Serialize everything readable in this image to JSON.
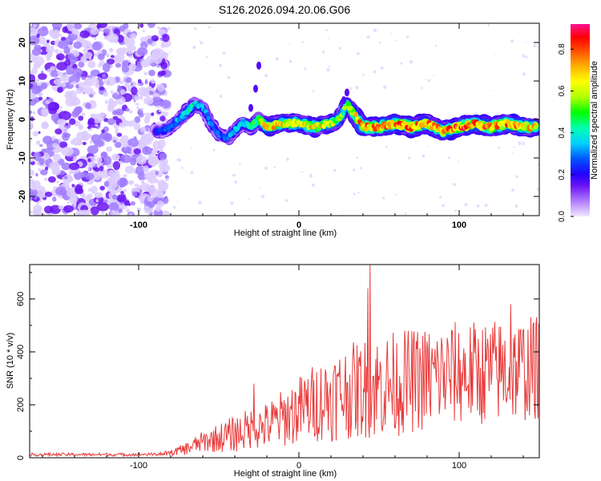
{
  "title": "S126.2026.094.20.06.G06",
  "chart_data": [
    {
      "type": "heatmap",
      "name": "spectrogram",
      "xlabel": "Height of straight line (km)",
      "ylabel": "Frequency (Hz)",
      "xlim": [
        -168,
        150
      ],
      "ylim": [
        -25,
        25
      ],
      "xticks": [
        -100,
        0,
        100
      ],
      "yticks": [
        -20,
        -10,
        0,
        10,
        20
      ],
      "noise_region_x": [
        -168,
        -82
      ],
      "signal_track": {
        "x": [
          -90,
          -85,
          -80,
          -75,
          -70,
          -65,
          -60,
          -55,
          -50,
          -45,
          -40,
          -35,
          -30,
          -25,
          -20,
          -10,
          0,
          10,
          20,
          25,
          30,
          35,
          40,
          50,
          60,
          70,
          80,
          90,
          100,
          110,
          120,
          130,
          140,
          148
        ],
        "y": [
          -3,
          -3,
          -2,
          0,
          2,
          4,
          3,
          -1,
          -4,
          -5,
          -3,
          -1,
          -2,
          0,
          -2,
          -1,
          -1,
          -2,
          -1,
          0,
          4,
          1,
          -2,
          -2,
          -1,
          -2,
          -1,
          -3,
          -2,
          -1,
          -2,
          -1,
          -2,
          -2
        ],
        "amplitude": [
          0.25,
          0.3,
          0.35,
          0.4,
          0.5,
          0.45,
          0.4,
          0.35,
          0.3,
          0.35,
          0.4,
          0.45,
          0.5,
          0.6,
          0.8,
          0.75,
          0.7,
          0.75,
          0.7,
          0.6,
          0.6,
          0.75,
          0.85,
          0.8,
          0.85,
          0.9,
          0.85,
          0.8,
          0.9,
          0.85,
          0.9,
          0.85,
          0.8,
          0.8
        ]
      },
      "colorbar": {
        "label": "Normalized spectral amplitude",
        "range": [
          0,
          0.92
        ],
        "ticks": [
          "0.0",
          "0.2",
          "0.4",
          "0.6",
          "0.8"
        ]
      }
    },
    {
      "type": "line",
      "name": "snr",
      "xlabel": "Height of straight line (km)",
      "ylabel": "SNR (10 * v/v)",
      "xlim": [
        -168,
        150
      ],
      "ylim": [
        0,
        730
      ],
      "xticks": [
        -100,
        0,
        100
      ],
      "yticks": [
        0,
        200,
        400,
        600
      ],
      "series": [
        {
          "name": "SNR",
          "color": "#e83a3a",
          "x": [
            -168,
            -140,
            -110,
            -90,
            -80,
            -70,
            -60,
            -50,
            -40,
            -30,
            -20,
            -10,
            0,
            10,
            20,
            30,
            40,
            45,
            50,
            60,
            70,
            80,
            90,
            100,
            110,
            120,
            130,
            140,
            150
          ],
          "mean": [
            12,
            12,
            12,
            13,
            18,
            35,
            60,
            75,
            90,
            110,
            120,
            150,
            180,
            210,
            230,
            250,
            260,
            265,
            270,
            280,
            290,
            300,
            310,
            320,
            320,
            325,
            330,
            335,
            340
          ],
          "spread": [
            6,
            6,
            6,
            6,
            10,
            25,
            40,
            55,
            70,
            80,
            90,
            110,
            130,
            150,
            170,
            180,
            190,
            200,
            200,
            200,
            200,
            200,
            200,
            200,
            200,
            200,
            200,
            200,
            200
          ],
          "peaks": [
            [
              44.5,
              730
            ],
            [
              43,
              640
            ],
            [
              132,
              580
            ],
            [
              -28,
              280
            ]
          ]
        }
      ]
    }
  ],
  "colors": {
    "noise": "#a07bff",
    "noise_dark": "#6a14f2",
    "axis": "#000000",
    "snr_line": "#e83a3a"
  }
}
